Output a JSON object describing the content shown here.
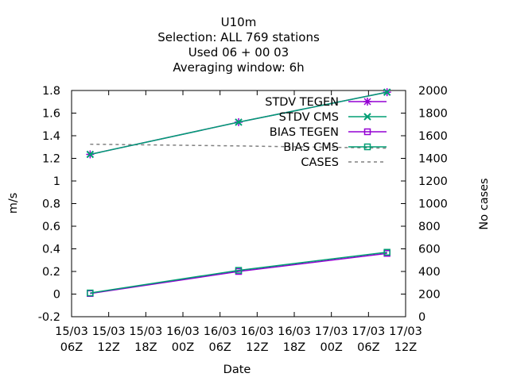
{
  "title_lines": [
    "U10m",
    "Selection: ALL     769 stations",
    "Used  06 + 00 03",
    "Averaging window:  6h"
  ],
  "chart_data": {
    "type": "line",
    "xlabel": "Date",
    "ylabel": "m/s",
    "y2label": "No cases",
    "x_ticks": [
      {
        "date": "15/03",
        "hour": "06Z"
      },
      {
        "date": "15/03",
        "hour": "12Z"
      },
      {
        "date": "15/03",
        "hour": "18Z"
      },
      {
        "date": "16/03",
        "hour": "00Z"
      },
      {
        "date": "16/03",
        "hour": "06Z"
      },
      {
        "date": "16/03",
        "hour": "12Z"
      },
      {
        "date": "16/03",
        "hour": "18Z"
      },
      {
        "date": "17/03",
        "hour": "00Z"
      },
      {
        "date": "17/03",
        "hour": "06Z"
      },
      {
        "date": "17/03",
        "hour": "12Z"
      }
    ],
    "xlim": [
      "15/03 06Z",
      "17/03 12Z"
    ],
    "y_ticks": [
      "-0.2",
      "0",
      "0.2",
      "0.4",
      "0.6",
      "0.8",
      "1",
      "1.2",
      "1.4",
      "1.6",
      "1.8"
    ],
    "ylim": [
      -0.2,
      1.8
    ],
    "y2_ticks": [
      "0",
      "200",
      "400",
      "600",
      "800",
      "1000",
      "1200",
      "1400",
      "1600",
      "1800",
      "2000"
    ],
    "y2lim": [
      0,
      2000
    ],
    "legend_position": "top-right",
    "series": [
      {
        "name": "STDV TEGEN",
        "axis": "y",
        "color": "#9400d3",
        "marker": "star",
        "dash": "solid",
        "x": [
          "15/03 09Z",
          "16/03 09Z",
          "17/03 09Z"
        ],
        "y": [
          1.235,
          1.52,
          1.785
        ]
      },
      {
        "name": "STDV CMS",
        "axis": "y",
        "color": "#009e73",
        "marker": "x",
        "dash": "solid",
        "x": [
          "15/03 09Z",
          "16/03 09Z",
          "17/03 09Z"
        ],
        "y": [
          1.235,
          1.52,
          1.785
        ]
      },
      {
        "name": "BIAS TEGEN",
        "axis": "y",
        "color": "#9400d3",
        "marker": "square",
        "dash": "solid",
        "x": [
          "15/03 09Z",
          "16/03 09Z",
          "17/03 09Z"
        ],
        "y": [
          0.005,
          0.2,
          0.36
        ]
      },
      {
        "name": "BIAS CMS",
        "axis": "y",
        "color": "#009e73",
        "marker": "square",
        "dash": "solid",
        "x": [
          "15/03 09Z",
          "16/03 09Z",
          "17/03 09Z"
        ],
        "y": [
          0.01,
          0.21,
          0.37
        ]
      },
      {
        "name": "CASES",
        "axis": "y2",
        "color": "#808080",
        "marker": "none",
        "dash": "dashed",
        "x": [
          "15/03 09Z",
          "16/03 09Z",
          "17/03 09Z"
        ],
        "y": [
          1525,
          1510,
          1490
        ]
      }
    ]
  }
}
